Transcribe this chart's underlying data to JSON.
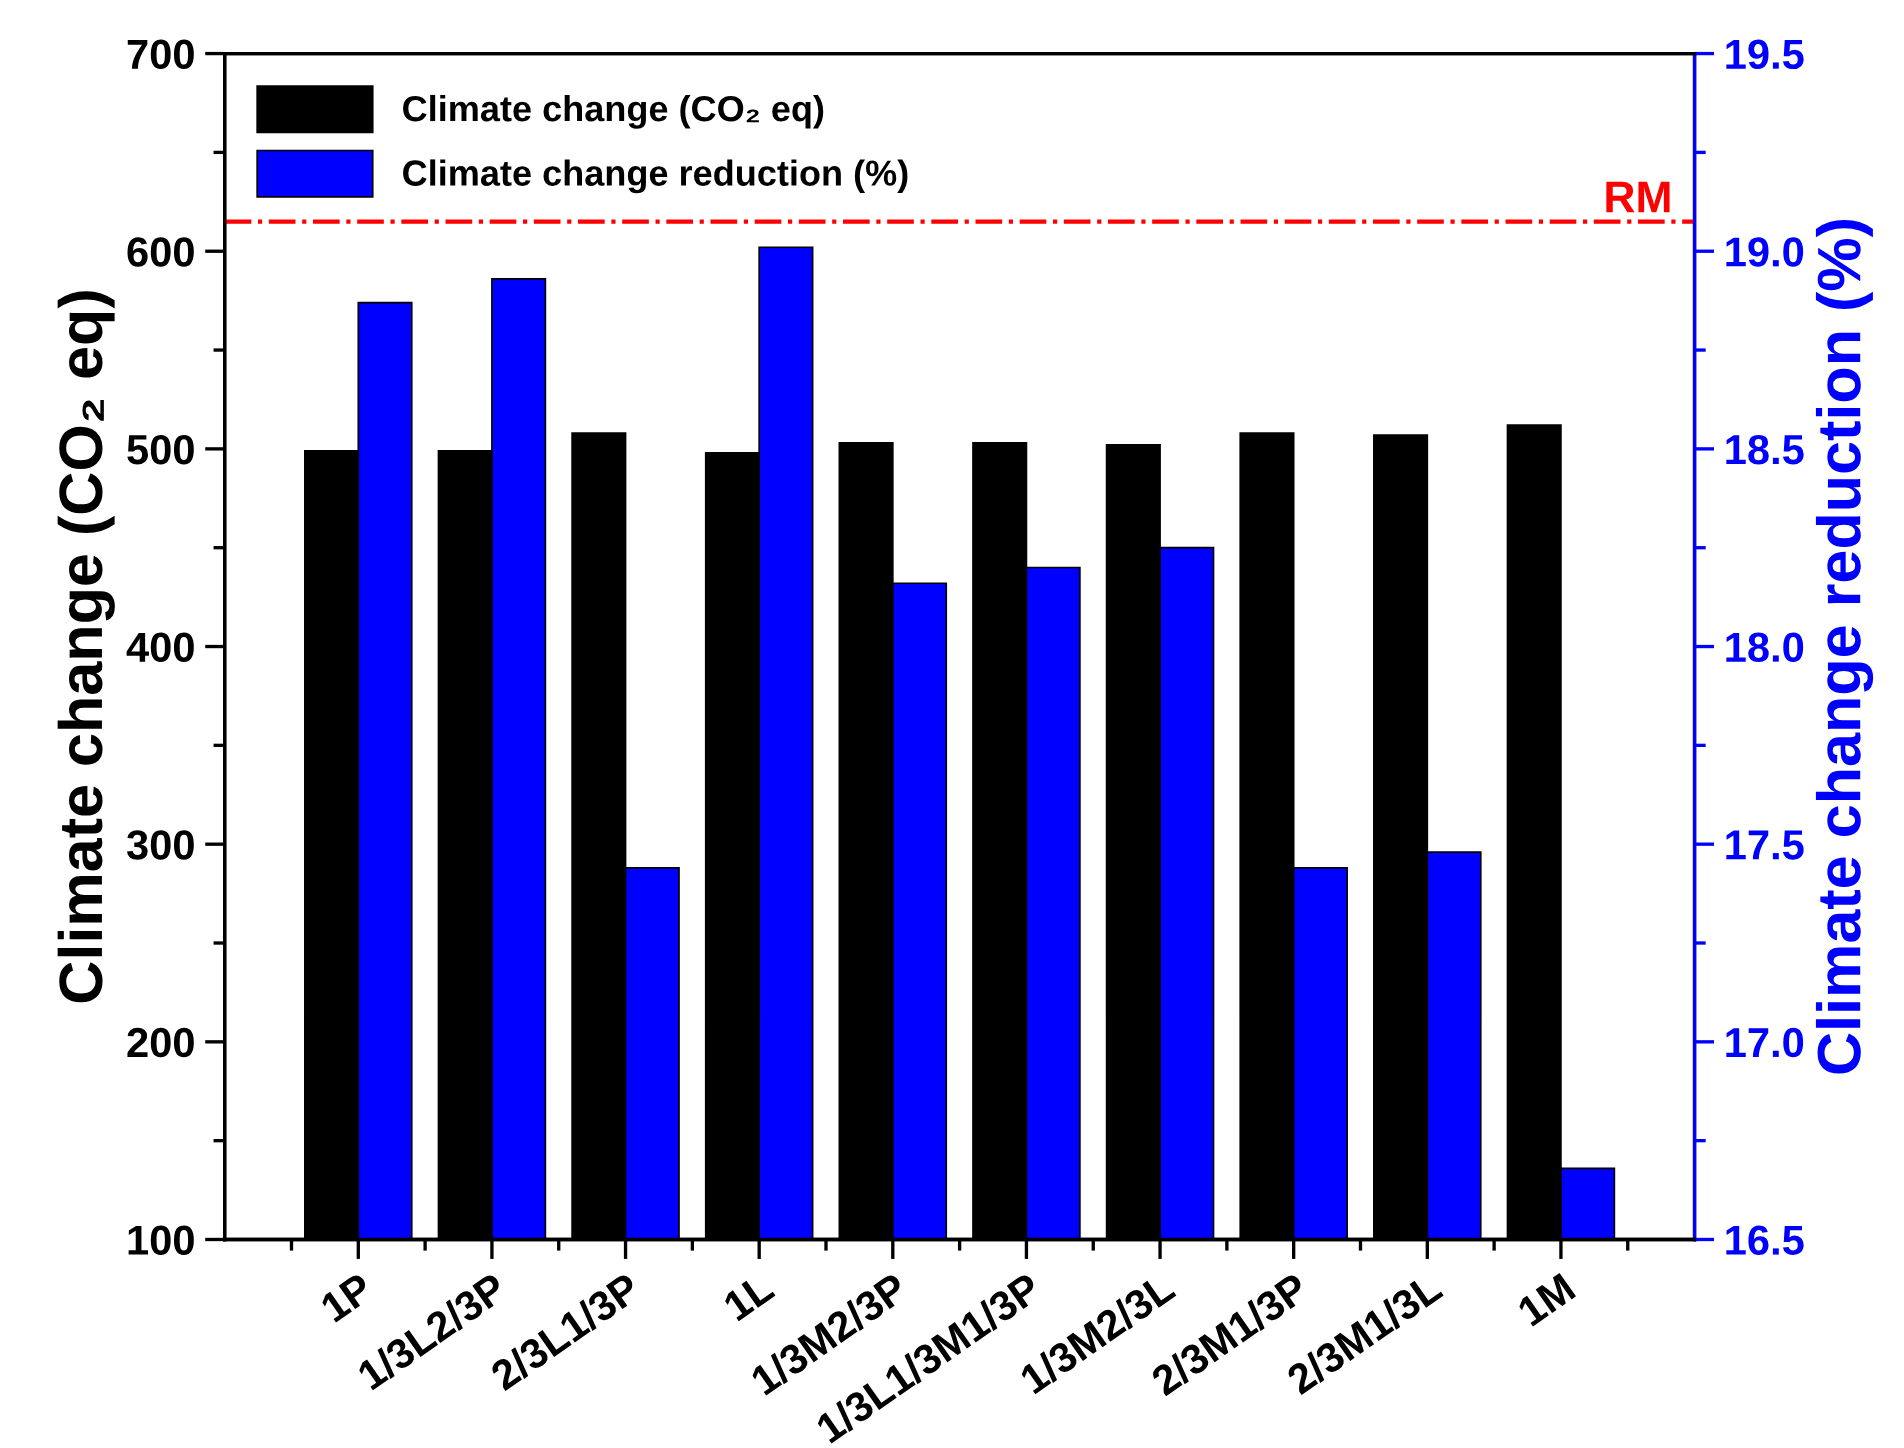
{
  "chart_data": {
    "type": "bar",
    "ylabel": "Climate change (CO₂ eq)",
    "y2label": "Climate change reduction (%)",
    "categories": [
      "1P",
      "1/3L2/3P",
      "2/3L1/3P",
      "1L",
      "1/3M2/3P",
      "1/3L1/3M1/3P",
      "1/3M2/3L",
      "2/3M1/3P",
      "2/3M1/3L",
      "1M"
    ],
    "series": [
      {
        "name": "Climate change (CO₂ eq)",
        "color": "#000000",
        "values": [
          499,
          499,
          508,
          498,
          503,
          503,
          502,
          508,
          507,
          512
        ]
      },
      {
        "name": "Climate change reduction (%)",
        "color": "#0000ff",
        "axis": "y2",
        "values": [
          18.87,
          18.93,
          17.44,
          19.01,
          18.16,
          18.2,
          18.25,
          17.44,
          17.48,
          16.68
        ]
      }
    ],
    "ylim": [
      100,
      700
    ],
    "yticks": [
      100,
      200,
      300,
      400,
      500,
      600,
      700
    ],
    "y2lim": [
      16.5,
      19.5
    ],
    "y2ticks": [
      16.5,
      {
        "value": 17,
        "label": "17.0"
      },
      17.5,
      {
        "value": 18,
        "label": "18.0"
      },
      18.5,
      {
        "value": 19,
        "label": "19.0"
      },
      19.5
    ],
    "ref_lines": [
      {
        "axis": "y",
        "value": 615,
        "label": "RM",
        "color": "#ff0000",
        "line_style": "dashdot"
      }
    ],
    "legend": "top left",
    "grid": false
  }
}
